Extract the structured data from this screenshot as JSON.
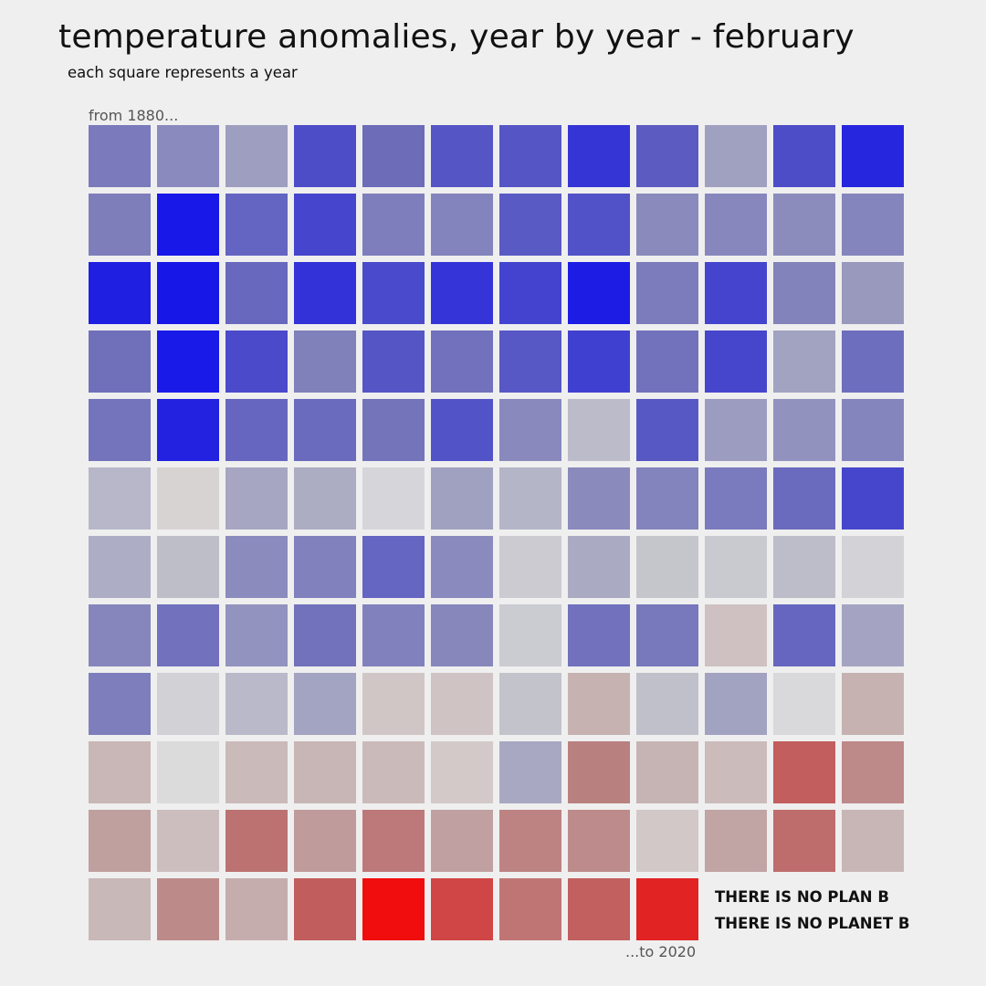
{
  "title": "temperature anomalies, year by year - february",
  "subtitle": "each square represents a year",
  "labels": {
    "start": "from 1880...",
    "end": "...to 2020"
  },
  "slogans": {
    "line1": "THERE IS NO PLAN B",
    "line2": "THERE IS NO PLANET B"
  },
  "chart_data": {
    "type": "heatmap",
    "layout": "waffle grid, 12 columns, one square per year, reading left-to-right, top-to-bottom",
    "columns": 12,
    "first_year": 1880,
    "last_year": 2020,
    "color_scale": {
      "cold": "#1a14e6",
      "neutral": "#d8d8d8",
      "warm": "#f40f0f"
    },
    "cell_colors": [
      "#7a7abc",
      "#8a8abe",
      "#9e9ec0",
      "#4d4dc8",
      "#6c6cb9",
      "#5555c5",
      "#5555c5",
      "#3535d5",
      "#5b5bc2",
      "#a0a0c0",
      "#4d4dc8",
      "#2626df",
      "#7e7ebb",
      "#1818e8",
      "#6464c2",
      "#4545cd",
      "#7e7ebc",
      "#8383bd",
      "#5a5ac5",
      "#5151c8",
      "#8a8abd",
      "#8787be",
      "#8c8cbc",
      "#8585bd",
      "#1f1fe2",
      "#1717e8",
      "#6868be",
      "#3232d8",
      "#4a4acc",
      "#3434d8",
      "#4343d0",
      "#1c1ce5",
      "#7c7cbc",
      "#4444cf",
      "#8383bb",
      "#9999be",
      "#7070ba",
      "#1a1ae8",
      "#4a4acb",
      "#8080bb",
      "#5555c6",
      "#7171bd",
      "#5757c5",
      "#4040d0",
      "#7272bc",
      "#4646cd",
      "#a2a2c1",
      "#6e6ebe",
      "#7474bd",
      "#2222e0",
      "#6666c0",
      "#6a6abe",
      "#7474bb",
      "#5353c8",
      "#8989bd",
      "#bbbbc9",
      "#5858c4",
      "#9c9cc0",
      "#9292bf",
      "#8585bd",
      "#b7b7c9",
      "#d8d3d3",
      "#a6a6c2",
      "#acacc2",
      "#d6d6da",
      "#a0a0c0",
      "#b5b5c8",
      "#8a8abd",
      "#8383bd",
      "#7a7abf",
      "#6a6abe",
      "#4646cc",
      "#adadc6",
      "#bebec9",
      "#8b8bbe",
      "#8181bd",
      "#6565c2",
      "#8a8abe",
      "#cbcbd1",
      "#aaaac3",
      "#c5c5cc",
      "#c9c9d0",
      "#bdbdc9",
      "#d2d2d7",
      "#8686bd",
      "#7171bd",
      "#9393bf",
      "#7272bc",
      "#8181bd",
      "#8787bc",
      "#cbcbd2",
      "#7171bd",
      "#7878bc",
      "#cfc1c1",
      "#6666c1",
      "#a4a4c2",
      "#7e7ebc",
      "#d1d1d6",
      "#b9b9c9",
      "#a3a3c2",
      "#d1c6c6",
      "#d0c3c3",
      "#c3c3cc",
      "#c7b2b2",
      "#c0c0cb",
      "#a2a2c1",
      "#d9d9dc",
      "#c7b2b2",
      "#c9b6b6",
      "#dcdbdb",
      "#cbbaba",
      "#c8b6b6",
      "#cbbaba",
      "#d3c9c9",
      "#a8a8c3",
      "#b98080",
      "#c6b3b3",
      "#cbbbbb",
      "#c25e5e",
      "#bd8989",
      "#c09f9f",
      "#ccbebe",
      "#bd7272",
      "#bf9b9b",
      "#bd7979",
      "#c0a0a0",
      "#bd8282",
      "#bd8b8b",
      "#d2c8c8",
      "#c1a4a4",
      "#be6c6c",
      "#c8b6b6",
      "#c9b8b8",
      "#bd8a8a",
      "#c6adad",
      "#c25d5d",
      "#f10d0d",
      "#d04545",
      "#c07575",
      "#c25f5f",
      "#e12323"
    ]
  }
}
